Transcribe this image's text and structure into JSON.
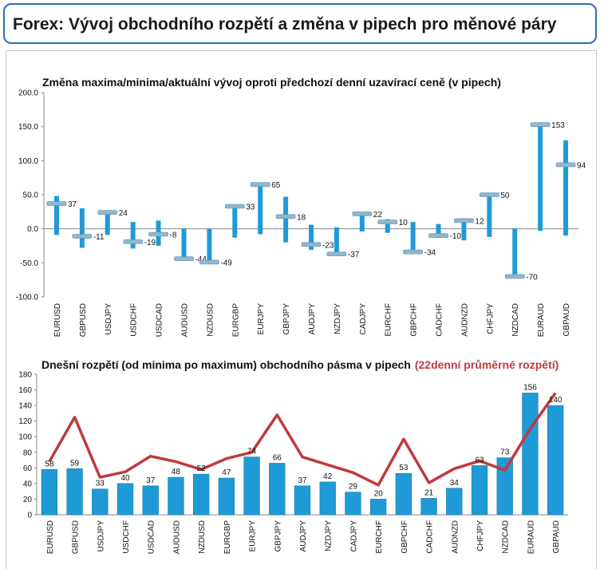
{
  "header": {
    "title": "Forex: Vývoj obchodního rozpětí a změna v pipech pro měnové páry"
  },
  "colors": {
    "accent": "#1e9bd7",
    "line": "#c0393e",
    "marker": "#8fb8cf",
    "frame": "#2f6fb0"
  },
  "chart_data": [
    {
      "type": "range-bar",
      "title": "Změna maxima/minima/aktuální vývoj oproti předchozí denní uzavírací ceně (v pipech)",
      "ylim": [
        -100,
        200
      ],
      "yticks": [
        "200.0",
        "150.0",
        "100.0",
        "50.0",
        "0.0",
        "-50.0",
        "-100.0"
      ],
      "ytick_values": [
        200,
        150,
        100,
        50,
        0,
        -50,
        -100
      ],
      "categories": [
        "EURUSD",
        "GBPUSD",
        "USDJPY",
        "USDCHF",
        "USDCAD",
        "AUDUSD",
        "NZDUSD",
        "EURGBP",
        "EURJPY",
        "GBPJPY",
        "AUDJPY",
        "NZDJPY",
        "CADJPY",
        "EURCHF",
        "GBPCHF",
        "CADCHF",
        "AUDNZD",
        "CHFJPY",
        "NZDCAD",
        "EURAUD",
        "GBPAUD"
      ],
      "high": [
        48,
        30,
        25,
        10,
        12,
        0,
        0,
        35,
        67,
        47,
        6,
        2,
        24,
        14,
        10,
        7,
        15,
        52,
        0,
        155,
        130
      ],
      "low": [
        -9,
        -28,
        -9,
        -29,
        -25,
        -43,
        -48,
        -13,
        -8,
        -20,
        -31,
        -37,
        -4,
        -6,
        -35,
        -12,
        -17,
        -12,
        -70,
        -3,
        -10
      ],
      "current": [
        37,
        -11,
        24,
        -19,
        -8,
        -44,
        -49,
        33,
        65,
        18,
        -23,
        -37,
        22,
        10,
        -34,
        -10,
        12,
        50,
        -70,
        153,
        94
      ],
      "labels": [
        "37",
        "-11",
        "24",
        "-19",
        "-8",
        "-44",
        "-49",
        "33",
        "65",
        "18",
        "-23",
        "-37",
        "22",
        "10",
        "-34",
        "-10",
        "12",
        "50",
        "-70",
        "153",
        "94"
      ]
    },
    {
      "type": "bar",
      "title": "Dnešní rozpětí (od minima po maximum) obchodního pásma v pipech",
      "title_extra": "(22denní průměrné rozpětí)",
      "ylim": [
        0,
        180
      ],
      "yticks": [
        "180",
        "160",
        "140",
        "120",
        "100",
        "80",
        "60",
        "40",
        "20",
        "0"
      ],
      "ytick_values": [
        180,
        160,
        140,
        120,
        100,
        80,
        60,
        40,
        20,
        0
      ],
      "categories": [
        "EURUSD",
        "GBPUSD",
        "USDJPY",
        "USDCHF",
        "USDCAD",
        "AUDUSD",
        "NZDUSD",
        "EURGBP",
        "EURJPY",
        "GBPJPY",
        "AUDJPY",
        "NZDJPY",
        "CADJPY",
        "EURCHF",
        "GBPCHF",
        "CADCHF",
        "AUDNZD",
        "CHFJPY",
        "NZDCAD",
        "EURAUD",
        "GBPAUD"
      ],
      "values": [
        58,
        59,
        33,
        40,
        37,
        48,
        52,
        47,
        74,
        66,
        37,
        42,
        29,
        20,
        53,
        21,
        34,
        63,
        73,
        156,
        140
      ],
      "labels": [
        "58",
        "59",
        "33",
        "40",
        "37",
        "48",
        "52",
        "47",
        "74",
        "66",
        "37",
        "42",
        "29",
        "20",
        "53",
        "21",
        "34",
        "63",
        "73",
        "156",
        "140"
      ],
      "avg_range": [
        68,
        125,
        48,
        55,
        75,
        68,
        58,
        72,
        80,
        128,
        74,
        64,
        54,
        38,
        97,
        41,
        59,
        69,
        57,
        110,
        156
      ]
    }
  ]
}
